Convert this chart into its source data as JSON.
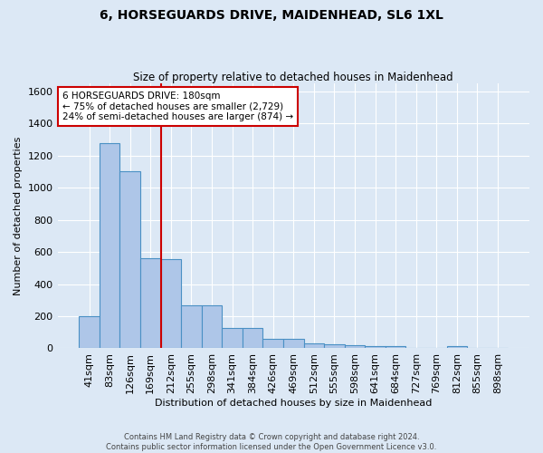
{
  "title": "6, HORSEGUARDS DRIVE, MAIDENHEAD, SL6 1XL",
  "subtitle": "Size of property relative to detached houses in Maidenhead",
  "xlabel": "Distribution of detached houses by size in Maidenhead",
  "ylabel": "Number of detached properties",
  "bar_labels": [
    "41sqm",
    "83sqm",
    "126sqm",
    "169sqm",
    "212sqm",
    "255sqm",
    "298sqm",
    "341sqm",
    "384sqm",
    "426sqm",
    "469sqm",
    "512sqm",
    "555sqm",
    "598sqm",
    "641sqm",
    "684sqm",
    "727sqm",
    "769sqm",
    "812sqm",
    "855sqm",
    "898sqm"
  ],
  "bar_values": [
    200,
    1280,
    1100,
    560,
    555,
    265,
    265,
    125,
    125,
    60,
    60,
    30,
    25,
    20,
    13,
    13,
    0,
    0,
    13,
    0,
    0
  ],
  "bar_color": "#aec6e8",
  "bar_edge_color": "#4a90c4",
  "ylim": [
    0,
    1650
  ],
  "yticks": [
    0,
    200,
    400,
    600,
    800,
    1000,
    1200,
    1400,
    1600
  ],
  "vline_x": 3.5,
  "vline_color": "#cc0000",
  "annotation_text": "6 HORSEGUARDS DRIVE: 180sqm\n← 75% of detached houses are smaller (2,729)\n24% of semi-detached houses are larger (874) →",
  "annotation_box_color": "#ffffff",
  "annotation_box_edge": "#cc0000",
  "footer_text": "Contains HM Land Registry data © Crown copyright and database right 2024.\nContains public sector information licensed under the Open Government Licence v3.0.",
  "bg_color": "#dce8f5",
  "plot_bg_color": "#dce8f5",
  "grid_color": "#ffffff"
}
